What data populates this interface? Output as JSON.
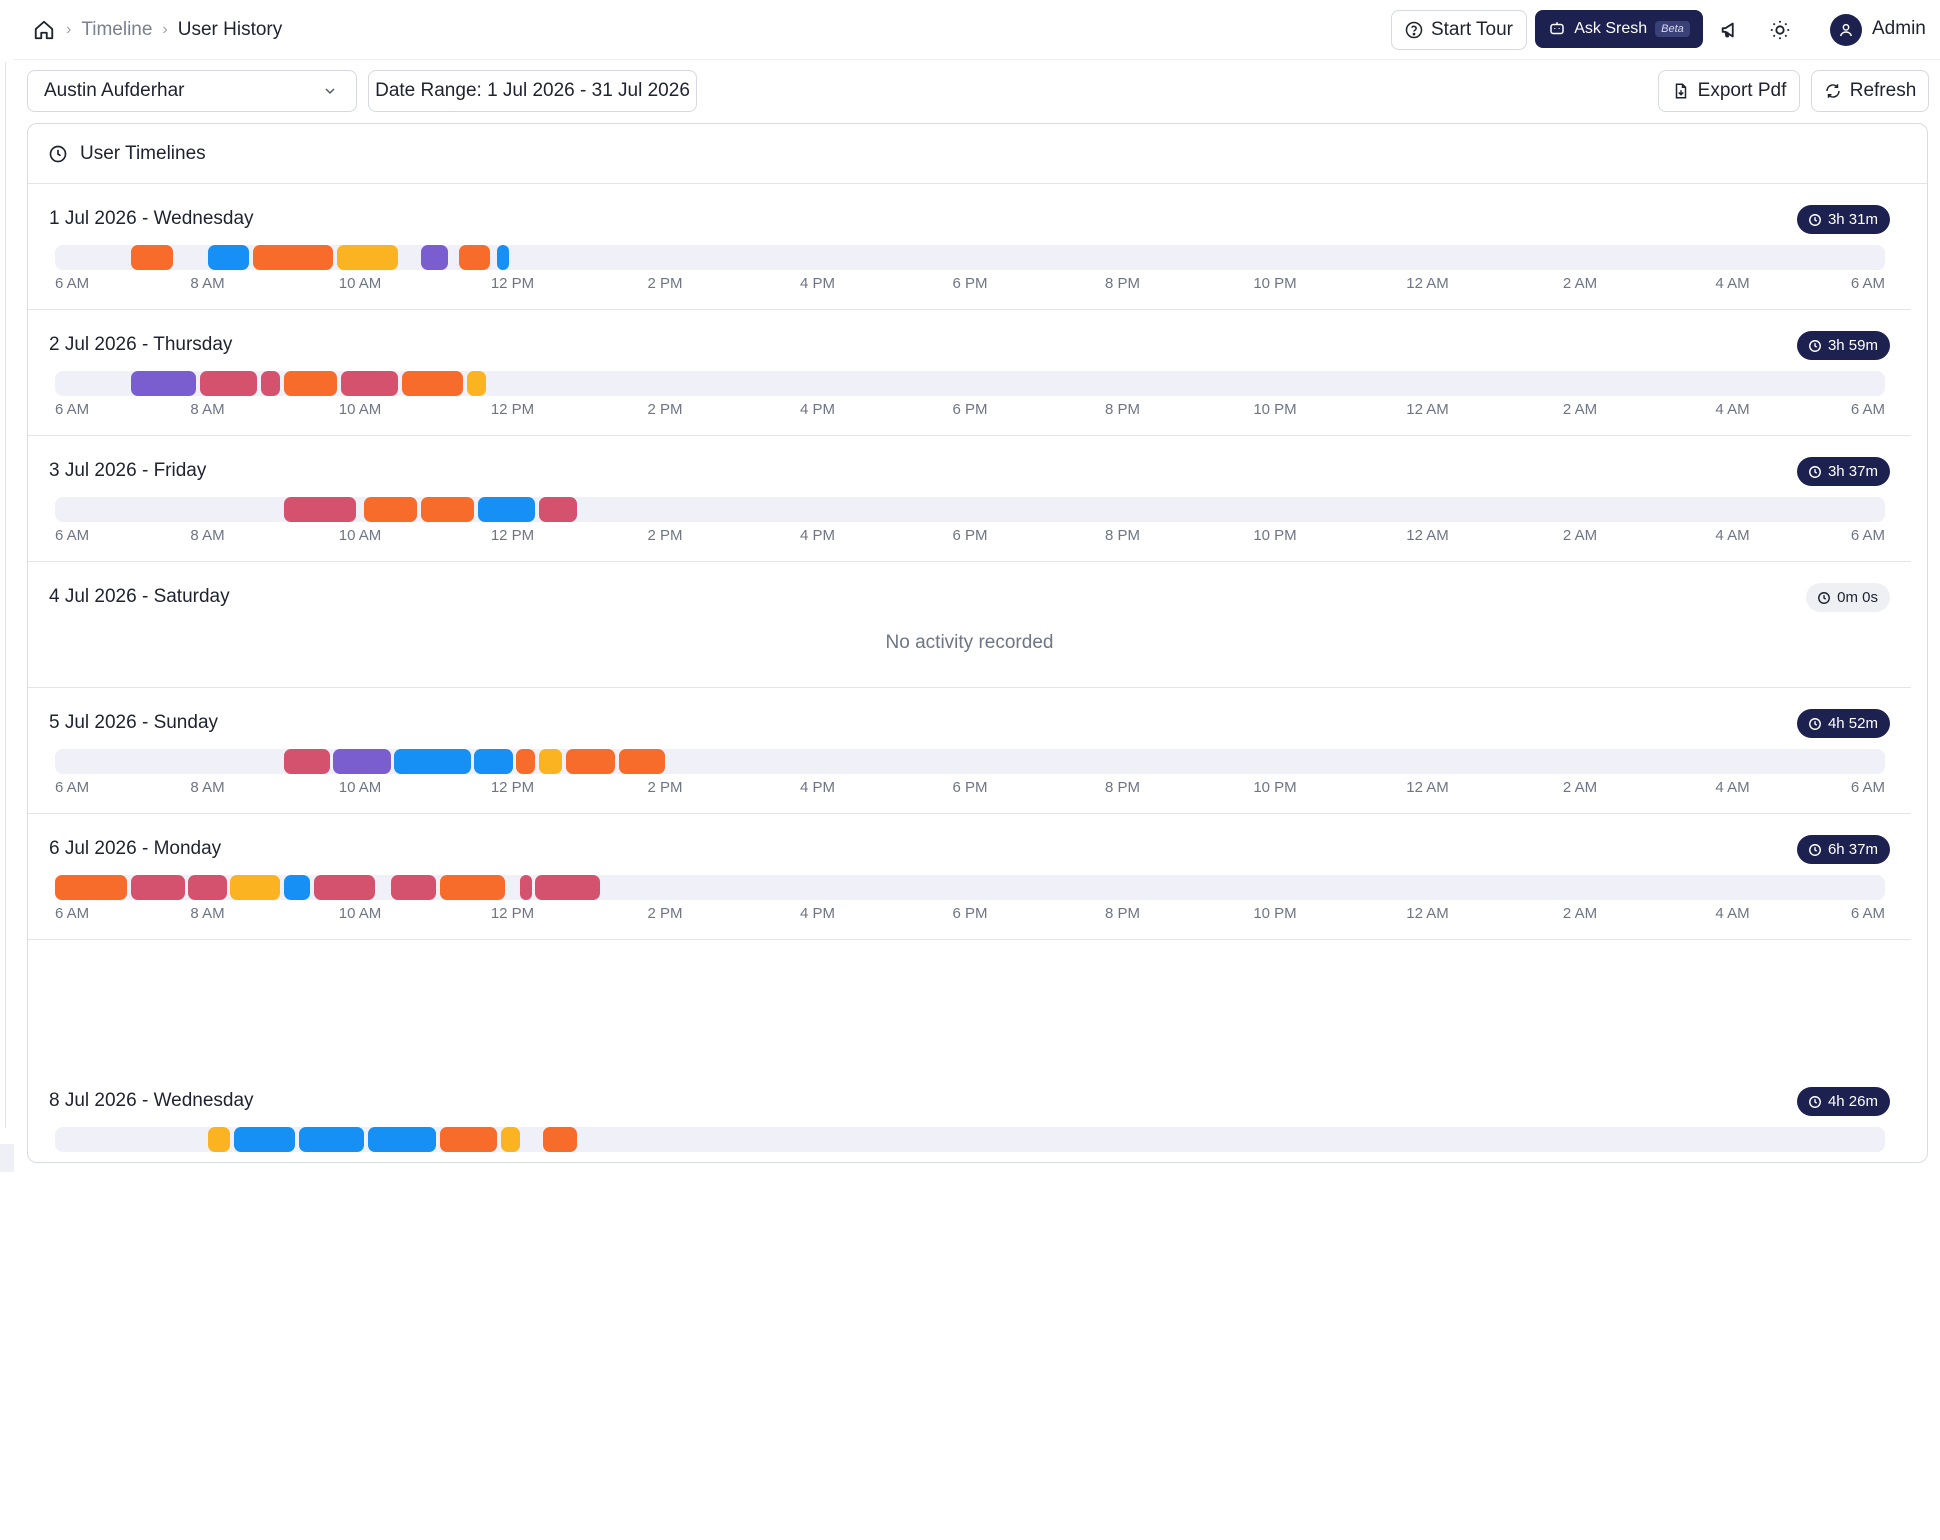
{
  "breadcrumb": {
    "items": [
      "Timeline"
    ],
    "current": "User History"
  },
  "topbar": {
    "start_tour": "Start Tour",
    "ask_sresh": "Ask Sresh",
    "beta": "Beta",
    "user_name": "Admin"
  },
  "filters": {
    "user": "Austin Aufderhar",
    "date_range": "Date Range: 1 Jul 2026 - 31 Jul 2026"
  },
  "actions": {
    "export_pdf": "Export Pdf",
    "refresh": "Refresh"
  },
  "card": {
    "title": "User Timelines",
    "empty_message": "No activity recorded"
  },
  "axis_labels": [
    "6 AM",
    "8 AM",
    "10 AM",
    "12 PM",
    "2 PM",
    "4 PM",
    "6 PM",
    "8 PM",
    "10 PM",
    "12 AM",
    "2 AM",
    "4 AM",
    "6 AM"
  ],
  "colors": {
    "orange": "#f76b2b",
    "blue": "#1690f5",
    "amber": "#fbb322",
    "purple": "#7a5ed0",
    "rose": "#d4526e",
    "navy": "#1c2150",
    "track": "#eff0f8"
  },
  "days": [
    {
      "title": "1 Jul 2026 - Wednesday",
      "duration": "3h 31m",
      "show_axis": true,
      "segments": [
        [
          "orange",
          7.0,
          7.55
        ],
        [
          "blue",
          8.0,
          8.55
        ],
        [
          "orange",
          8.6,
          9.65
        ],
        [
          "amber",
          9.7,
          10.5
        ],
        [
          "purple",
          10.8,
          11.15
        ],
        [
          "orange",
          11.3,
          11.7
        ],
        [
          "blue",
          11.8,
          11.95
        ]
      ]
    },
    {
      "title": "2 Jul 2026 - Thursday",
      "duration": "3h 59m",
      "show_axis": true,
      "segments": [
        [
          "purple",
          7.0,
          7.85
        ],
        [
          "rose",
          7.9,
          8.65
        ],
        [
          "rose",
          8.7,
          8.95
        ],
        [
          "orange",
          9.0,
          9.7
        ],
        [
          "rose",
          9.75,
          10.5
        ],
        [
          "orange",
          10.55,
          11.35
        ],
        [
          "amber",
          11.4,
          11.65
        ]
      ]
    },
    {
      "title": "3 Jul 2026 - Friday",
      "duration": "3h 37m",
      "show_axis": true,
      "segments": [
        [
          "rose",
          9.0,
          9.95
        ],
        [
          "orange",
          10.05,
          10.75
        ],
        [
          "orange",
          10.8,
          11.5
        ],
        [
          "blue",
          11.55,
          12.3
        ],
        [
          "rose",
          12.35,
          12.85
        ]
      ]
    },
    {
      "title": "4 Jul 2026 - Saturday",
      "duration": "0m 0s",
      "empty": true,
      "segments": []
    },
    {
      "title": "5 Jul 2026 - Sunday",
      "duration": "4h 52m",
      "show_axis": true,
      "segments": [
        [
          "rose",
          9.0,
          9.6
        ],
        [
          "purple",
          9.65,
          10.4
        ],
        [
          "blue",
          10.45,
          11.45
        ],
        [
          "blue",
          11.5,
          12.0
        ],
        [
          "orange",
          12.05,
          12.3
        ],
        [
          "amber",
          12.35,
          12.65
        ],
        [
          "orange",
          12.7,
          13.35
        ],
        [
          "orange",
          13.4,
          14.0
        ]
      ]
    },
    {
      "title": "6 Jul 2026 - Monday",
      "duration": "6h 37m",
      "show_axis": true,
      "segments": [
        [
          "orange",
          6.0,
          6.95
        ],
        [
          "rose",
          7.0,
          7.7
        ],
        [
          "rose",
          7.75,
          8.25
        ],
        [
          "amber",
          8.3,
          8.95
        ],
        [
          "blue",
          9.0,
          9.35
        ],
        [
          "rose",
          9.4,
          10.2
        ],
        [
          "rose",
          10.4,
          11.0
        ],
        [
          "orange",
          11.05,
          11.9
        ],
        [
          "rose",
          12.1,
          12.25
        ],
        [
          "rose",
          12.3,
          13.15
        ]
      ]
    },
    {
      "title": "8 Jul 2026 - Wednesday",
      "duration": "4h 26m",
      "show_axis": false,
      "segments": [
        [
          "amber",
          8.0,
          8.3
        ],
        [
          "blue",
          8.35,
          9.15
        ],
        [
          "blue",
          9.2,
          10.05
        ],
        [
          "blue",
          10.1,
          11.0
        ],
        [
          "orange",
          11.05,
          11.8
        ],
        [
          "amber",
          11.85,
          12.1
        ],
        [
          "orange",
          12.4,
          12.85
        ]
      ]
    }
  ]
}
